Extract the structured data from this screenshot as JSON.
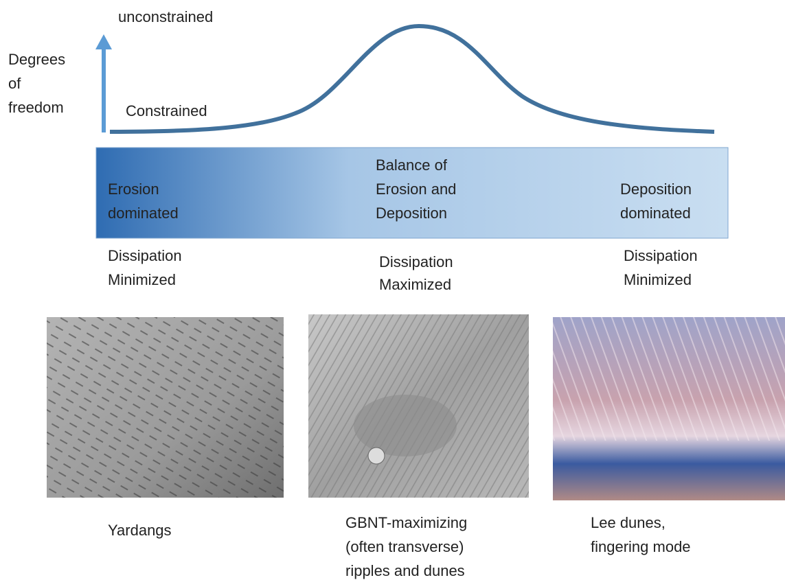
{
  "axis": {
    "top_label": "unconstrained",
    "side_label": [
      "Degrees",
      "of",
      "freedom"
    ],
    "bottom_label": "Constrained"
  },
  "bar": {
    "left": [
      "Erosion",
      "dominated"
    ],
    "middle": [
      "Balance of",
      "Erosion and",
      "Deposition"
    ],
    "right": [
      "Deposition",
      "dominated"
    ]
  },
  "dissipation": [
    [
      "Dissipation",
      "Minimized"
    ],
    [
      "Dissipation",
      "Maximized"
    ],
    [
      "Dissipation",
      "Minimized"
    ]
  ],
  "captions": [
    [
      "Yardangs"
    ],
    [
      "GBNT-maximizing",
      "(often transverse)",
      "ripples and dunes"
    ],
    [
      "Lee dunes,",
      "fingering mode"
    ]
  ]
}
